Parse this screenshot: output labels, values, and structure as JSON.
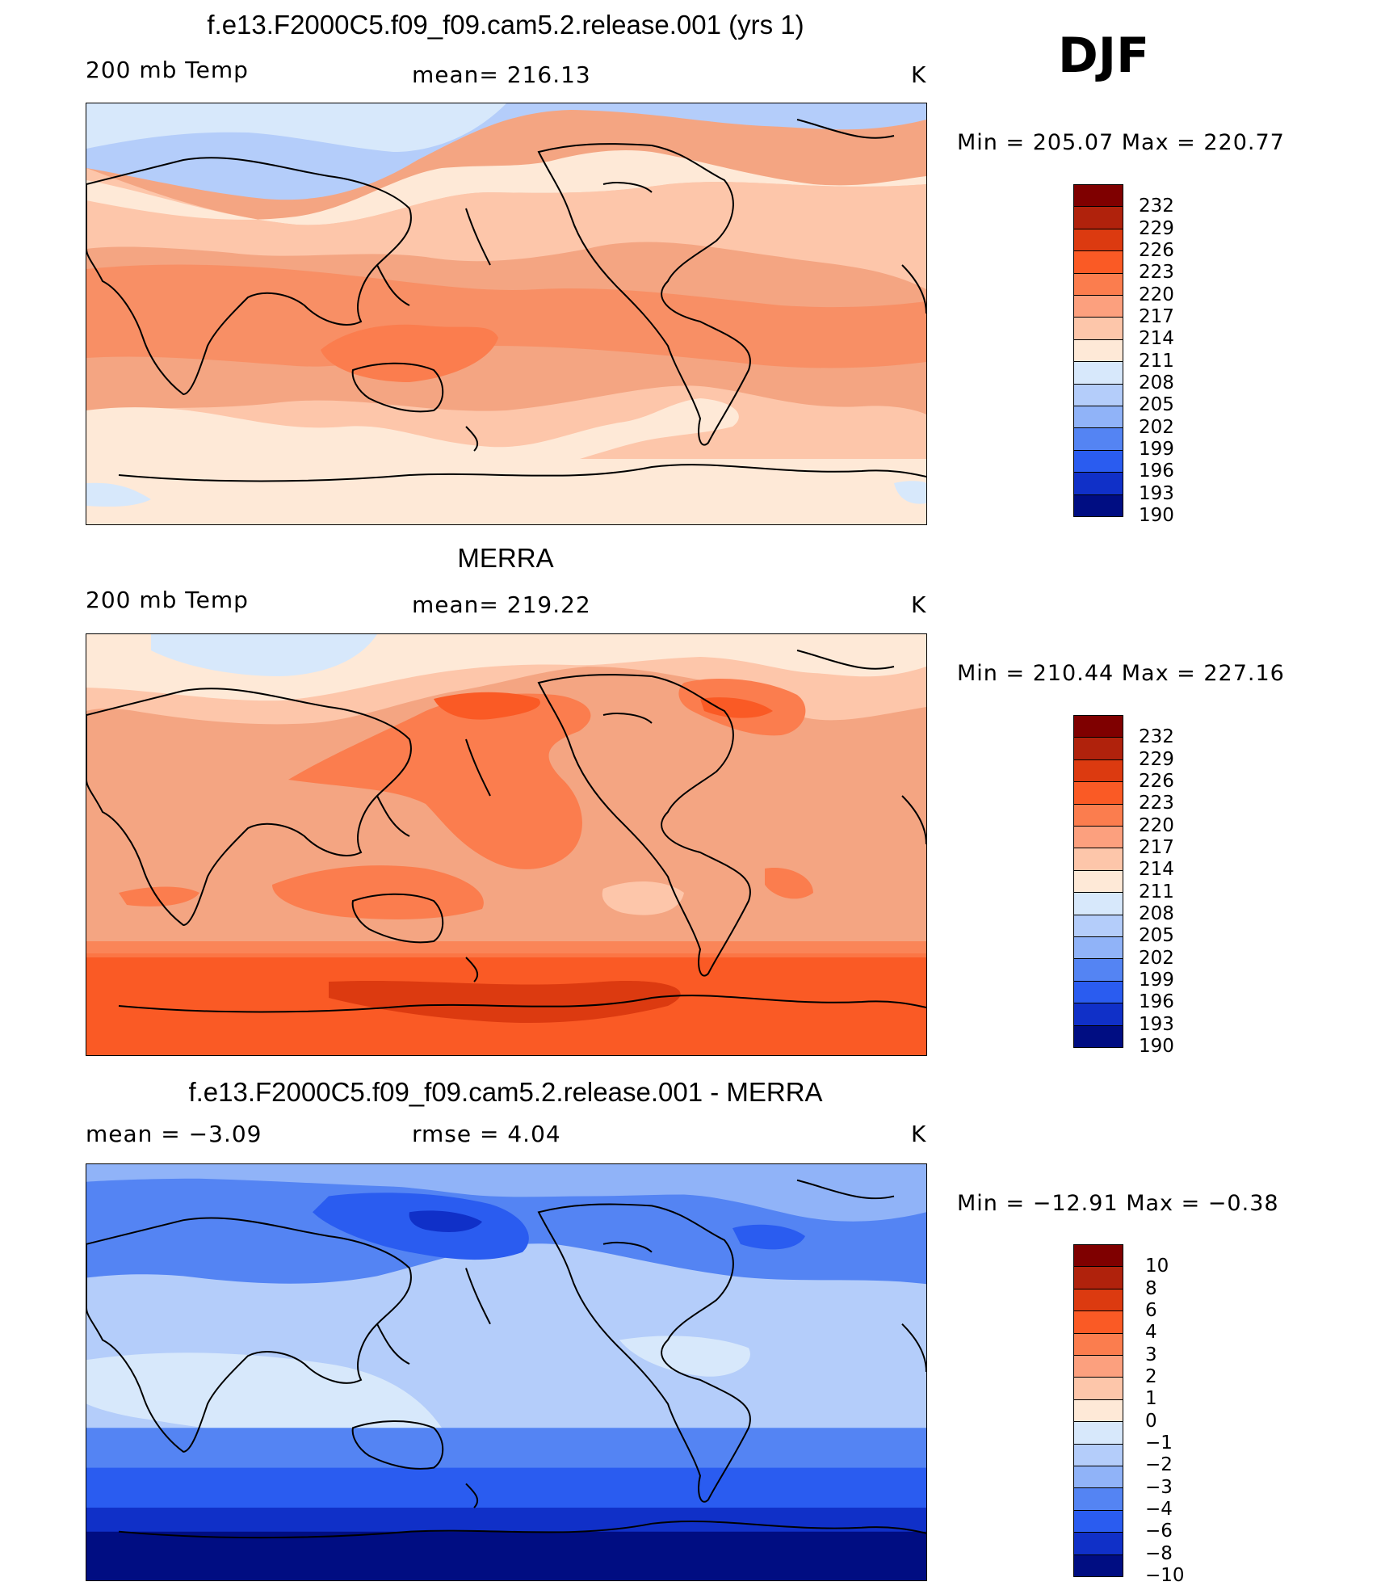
{
  "season": "DJF",
  "panels": [
    {
      "title": "f.e13.F2000C5.f09_f09.cam5.2.release.001 (yrs 1)",
      "left_label": "200 mb Temp",
      "center_label": "mean= 216.13",
      "unit": "K",
      "minmax": "Min  =  205.07  Max  =  220.77",
      "bg_color": "#f4a582",
      "levels": [
        "232",
        "229",
        "226",
        "223",
        "220",
        "217",
        "214",
        "211",
        "208",
        "205",
        "202",
        "199",
        "196",
        "193",
        "190"
      ]
    },
    {
      "title": "MERRA",
      "left_label": "200 mb Temp",
      "center_label": "mean= 219.22",
      "unit": "K",
      "minmax": "Min  =  210.44  Max  =  227.16",
      "bg_color": "#f4a582",
      "levels": [
        "232",
        "229",
        "226",
        "223",
        "220",
        "217",
        "214",
        "211",
        "208",
        "205",
        "202",
        "199",
        "196",
        "193",
        "190"
      ]
    },
    {
      "title": "f.e13.F2000C5.f09_f09.cam5.2.release.001 - MERRA",
      "left_label": "mean =    −3.09",
      "center_label": "rmse =     4.04",
      "unit": "K",
      "minmax": "Min  =  −12.91  Max  =    −0.38",
      "bg_color": "#b4cdfa",
      "levels": [
        "10",
        "8",
        "6",
        "4",
        "3",
        "2",
        "1",
        "0",
        "−1",
        "−2",
        "−3",
        "−4",
        "−6",
        "−8",
        "−10"
      ]
    }
  ],
  "colorbar_colors": [
    "#7f0000",
    "#b0220c",
    "#dc3a10",
    "#fa5a25",
    "#fb7d4e",
    "#fca07e",
    "#fdc6aa",
    "#fee9d7",
    "#d7e8fb",
    "#b4cdfa",
    "#90b3f8",
    "#5484f3",
    "#2a5cf0",
    "#1030c8",
    "#000d82"
  ]
}
